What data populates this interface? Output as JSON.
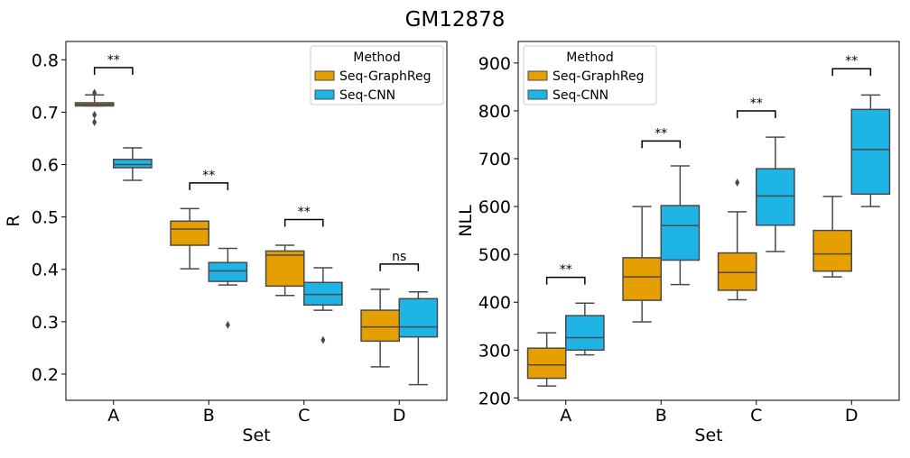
{
  "figure_title": "GM12878",
  "colors": {
    "seq_graphreg": "#E69F00",
    "seq_cnn": "#1EB4E6",
    "edge": "#4a4a4a"
  },
  "chart_data": [
    {
      "type": "box",
      "xlabel": "Set",
      "ylabel": "R",
      "ylim": [
        0.15,
        0.835
      ],
      "yticks": [
        "0.2",
        "0.3",
        "0.4",
        "0.5",
        "0.6",
        "0.7",
        "0.8"
      ],
      "categories": [
        "A",
        "B",
        "C",
        "D"
      ],
      "legend": {
        "title": "Method",
        "position": "top-right"
      },
      "series": [
        {
          "name": "Seq-GraphReg",
          "boxes": [
            {
              "whislo": 0.712,
              "q1": 0.712,
              "med": 0.715,
              "q3": 0.718,
              "whishi": 0.733,
              "fliers": [
                0.737,
                0.695,
                0.681
              ]
            },
            {
              "whislo": 0.401,
              "q1": 0.446,
              "med": 0.477,
              "q3": 0.492,
              "whishi": 0.516,
              "fliers": []
            },
            {
              "whislo": 0.35,
              "q1": 0.368,
              "med": 0.427,
              "q3": 0.435,
              "whishi": 0.446,
              "fliers": []
            },
            {
              "whislo": 0.214,
              "q1": 0.263,
              "med": 0.29,
              "q3": 0.322,
              "whishi": 0.362,
              "fliers": []
            }
          ]
        },
        {
          "name": "Seq-CNN",
          "boxes": [
            {
              "whislo": 0.57,
              "q1": 0.594,
              "med": 0.6,
              "q3": 0.61,
              "whishi": 0.632,
              "fliers": []
            },
            {
              "whislo": 0.37,
              "q1": 0.377,
              "med": 0.397,
              "q3": 0.413,
              "whishi": 0.44,
              "fliers": [
                0.294
              ]
            },
            {
              "whislo": 0.322,
              "q1": 0.332,
              "med": 0.352,
              "q3": 0.375,
              "whishi": 0.403,
              "fliers": [
                0.265
              ]
            },
            {
              "whislo": 0.18,
              "q1": 0.271,
              "med": 0.29,
              "q3": 0.344,
              "whishi": 0.357,
              "fliers": []
            }
          ]
        }
      ],
      "significance": [
        {
          "label": "**",
          "y": 0.785
        },
        {
          "label": "**",
          "y": 0.565
        },
        {
          "label": "**",
          "y": 0.495
        },
        {
          "label": "ns",
          "y": 0.41
        }
      ]
    },
    {
      "type": "box",
      "xlabel": "Set",
      "ylabel": "NLL",
      "ylim": [
        195,
        945
      ],
      "yticks": [
        "200",
        "300",
        "400",
        "500",
        "600",
        "700",
        "800",
        "900"
      ],
      "categories": [
        "A",
        "B",
        "C",
        "D"
      ],
      "legend": {
        "title": "Method",
        "position": "top-left"
      },
      "series": [
        {
          "name": "Seq-GraphReg",
          "boxes": [
            {
              "whislo": 225,
              "q1": 241,
              "med": 269,
              "q3": 304,
              "whishi": 336,
              "fliers": []
            },
            {
              "whislo": 359,
              "q1": 404,
              "med": 453,
              "q3": 493,
              "whishi": 600,
              "fliers": []
            },
            {
              "whislo": 405,
              "q1": 425,
              "med": 462,
              "q3": 503,
              "whishi": 589,
              "fliers": [
                650
              ]
            },
            {
              "whislo": 453,
              "q1": 465,
              "med": 501,
              "q3": 550,
              "whishi": 621,
              "fliers": []
            }
          ]
        },
        {
          "name": "Seq-CNN",
          "boxes": [
            {
              "whislo": 290,
              "q1": 300,
              "med": 326,
              "q3": 372,
              "whishi": 398,
              "fliers": []
            },
            {
              "whislo": 437,
              "q1": 488,
              "med": 560,
              "q3": 602,
              "whishi": 685,
              "fliers": []
            },
            {
              "whislo": 506,
              "q1": 561,
              "med": 622,
              "q3": 679,
              "whishi": 745,
              "fliers": []
            },
            {
              "whislo": 600,
              "q1": 626,
              "med": 719,
              "q3": 803,
              "whishi": 833,
              "fliers": []
            }
          ]
        }
      ],
      "significance": [
        {
          "label": "**",
          "y": 452
        },
        {
          "label": "**",
          "y": 737
        },
        {
          "label": "**",
          "y": 800
        },
        {
          "label": "**",
          "y": 888
        }
      ]
    }
  ]
}
